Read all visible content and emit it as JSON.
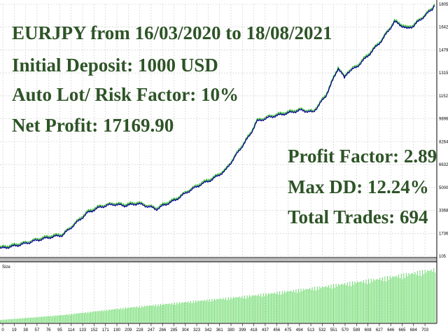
{
  "overlay_left": {
    "title": "EURJPY from 16/03/2020 to 18/08/2021",
    "deposit": "Initial Deposit: 1000 USD",
    "risk": "Auto Lot/ Risk Factor: 10%",
    "profit": "Net Profit: 17169.90"
  },
  "overlay_right": {
    "profit_factor": "Profit Factor: 2.89",
    "max_dd": "Max DD: 12.24%",
    "trades": "Total Trades: 694"
  },
  "colors": {
    "text": "#2e5427",
    "balance_line": "#00008b",
    "equity_line": "#3cb63c",
    "volume_bars": "#66d966",
    "grid": "#c8c8c8"
  },
  "chart_data": [
    {
      "type": "line",
      "title": "",
      "y_ticks": [
        "18055",
        "16423",
        "14791",
        "13159",
        "11527",
        "9896",
        "8264",
        "6632",
        "5000",
        "3368",
        "1736",
        "105"
      ],
      "ylim": [
        105,
        18055
      ],
      "xlim": [
        0,
        694
      ],
      "grid": true,
      "series": [
        {
          "x": [
            0,
            20,
            40,
            60,
            80,
            100,
            120,
            140,
            160,
            180,
            200,
            220,
            240,
            250,
            260,
            280,
            300,
            320,
            340,
            360,
            380,
            400,
            410,
            430,
            450,
            460,
            480,
            500,
            520,
            530,
            540,
            550,
            555,
            570,
            590,
            610,
            630,
            650,
            660,
            670,
            690,
            694
          ],
          "y": [
            650,
            800,
            1000,
            1250,
            1450,
            1600,
            2400,
            3200,
            3600,
            3800,
            3700,
            3850,
            3600,
            3450,
            3700,
            4100,
            4700,
            5200,
            5600,
            6200,
            7500,
            8800,
            9700,
            10000,
            10200,
            10300,
            10500,
            10350,
            11500,
            12500,
            13500,
            12800,
            13200,
            13600,
            14500,
            15500,
            16800,
            16300,
            16500,
            16900,
            17700,
            18055
          ]
        }
      ]
    },
    {
      "type": "bar",
      "title": "Size",
      "x_ticks": [
        "0",
        "19",
        "38",
        "57",
        "76",
        "95",
        "114",
        "133",
        "152",
        "171",
        "190",
        "209",
        "228",
        "247",
        "266",
        "285",
        "304",
        "323",
        "342",
        "361",
        "380",
        "399",
        "418",
        "437",
        "456",
        "475",
        "494",
        "513",
        "532",
        "551",
        "570",
        "589",
        "608",
        "627",
        "646",
        "665",
        "684",
        "703"
      ],
      "xlim": [
        0,
        694
      ],
      "trend_relative": {
        "x": [
          0,
          100,
          200,
          300,
          400,
          500,
          600,
          694
        ],
        "y": [
          0.05,
          0.14,
          0.27,
          0.38,
          0.49,
          0.63,
          0.79,
          0.97
        ]
      }
    }
  ]
}
